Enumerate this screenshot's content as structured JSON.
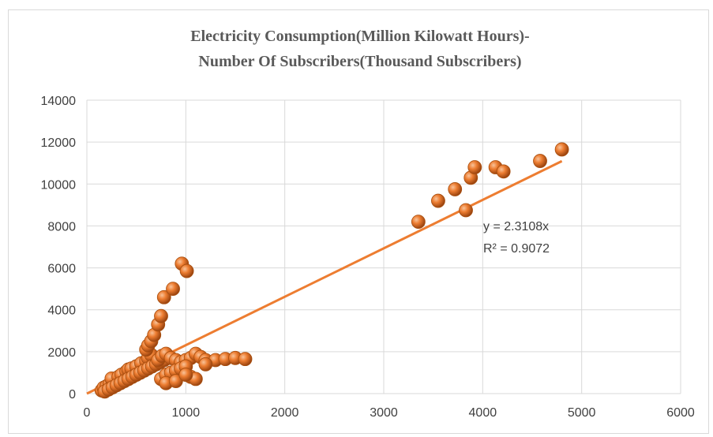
{
  "chart_data": {
    "type": "scatter",
    "title_lines": [
      "Electricity Consumption(Million Kilowatt Hours)-",
      "Number Of Subscribers(Thousand Subscribers)"
    ],
    "xlabel": "",
    "ylabel": "",
    "xlim": [
      0,
      6000
    ],
    "ylim": [
      0,
      14000
    ],
    "x_ticks": [
      "0",
      "1000",
      "2000",
      "3000",
      "4000",
      "5000",
      "6000"
    ],
    "y_ticks": [
      "0",
      "2000",
      "4000",
      "6000",
      "8000",
      "10000",
      "12000",
      "14000"
    ],
    "grid": true,
    "legend": "none",
    "marker_color": "#ED7D31",
    "trendline": {
      "color": "#ED7D31",
      "slope": 2.3108,
      "x_range": [
        0,
        4800
      ],
      "equation": "y = 2.3108x",
      "r_squared": "R² = 0.9072"
    },
    "points": [
      [
        150,
        150
      ],
      [
        170,
        280
      ],
      [
        200,
        350
      ],
      [
        230,
        450
      ],
      [
        260,
        600
      ],
      [
        250,
        720
      ],
      [
        320,
        800
      ],
      [
        350,
        900
      ],
      [
        400,
        1050
      ],
      [
        420,
        1150
      ],
      [
        450,
        1200
      ],
      [
        500,
        1300
      ],
      [
        550,
        1450
      ],
      [
        600,
        1550
      ],
      [
        620,
        1700
      ],
      [
        650,
        1850
      ],
      [
        180,
        100
      ],
      [
        220,
        200
      ],
      [
        260,
        300
      ],
      [
        300,
        400
      ],
      [
        340,
        500
      ],
      [
        380,
        600
      ],
      [
        420,
        700
      ],
      [
        460,
        800
      ],
      [
        500,
        900
      ],
      [
        540,
        1000
      ],
      [
        580,
        1100
      ],
      [
        620,
        1200
      ],
      [
        660,
        1300
      ],
      [
        700,
        1400
      ],
      [
        740,
        1500
      ],
      [
        780,
        1600
      ],
      [
        600,
        2100
      ],
      [
        620,
        2300
      ],
      [
        650,
        2500
      ],
      [
        680,
        2800
      ],
      [
        720,
        3300
      ],
      [
        750,
        3700
      ],
      [
        780,
        4600
      ],
      [
        870,
        5000
      ],
      [
        960,
        6200
      ],
      [
        1010,
        5850
      ],
      [
        720,
        1600
      ],
      [
        760,
        1800
      ],
      [
        800,
        1900
      ],
      [
        850,
        1700
      ],
      [
        900,
        1600
      ],
      [
        950,
        1500
      ],
      [
        1000,
        1600
      ],
      [
        1050,
        1700
      ],
      [
        1100,
        1900
      ],
      [
        1150,
        1750
      ],
      [
        1200,
        1600
      ],
      [
        1300,
        1600
      ],
      [
        1400,
        1650
      ],
      [
        1500,
        1700
      ],
      [
        1600,
        1650
      ],
      [
        750,
        700
      ],
      [
        800,
        900
      ],
      [
        850,
        1000
      ],
      [
        900,
        1100
      ],
      [
        950,
        1200
      ],
      [
        1000,
        1300
      ],
      [
        1050,
        800
      ],
      [
        1100,
        700
      ],
      [
        800,
        500
      ],
      [
        900,
        600
      ],
      [
        1000,
        900
      ],
      [
        1200,
        1400
      ],
      [
        3350,
        8200
      ],
      [
        3550,
        9200
      ],
      [
        3720,
        9750
      ],
      [
        3830,
        8750
      ],
      [
        3880,
        10300
      ],
      [
        3920,
        10800
      ],
      [
        4130,
        10800
      ],
      [
        4210,
        10600
      ],
      [
        4580,
        11100
      ],
      [
        4800,
        11650
      ]
    ]
  },
  "colors": {
    "marker_fill": "#ED7D31",
    "marker_stroke": "#A84E0E",
    "grid": "#D9D9D9",
    "text": "#404040"
  }
}
